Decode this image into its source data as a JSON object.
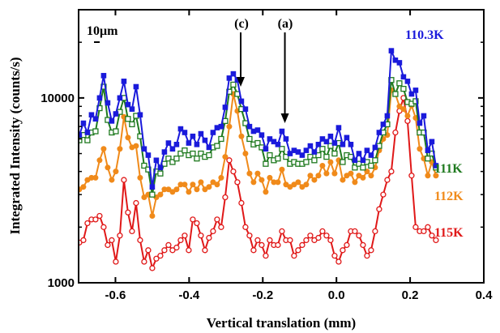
{
  "chart_data": {
    "type": "line",
    "xlabel": "Vertical translation (mm)",
    "ylabel": "Integrated Intensity (counts/s)",
    "xlim": [
      -0.7,
      0.4
    ],
    "ylim": [
      1000,
      30000
    ],
    "yscale": "log",
    "x_ticks": [
      -0.6,
      -0.4,
      -0.2,
      0.0,
      0.2,
      0.4
    ],
    "x_tick_labels": [
      "-0.6",
      "-0.4",
      "-0.2",
      "0.0",
      "0.2",
      "0.4"
    ],
    "y_ticks": [
      1000,
      10000
    ],
    "y_tick_labels": [
      "1000",
      "10000"
    ],
    "grid": false,
    "scale_bar_label": "10μm",
    "annotations": [
      {
        "text": "(c)",
        "x": -0.26,
        "arrow_tip_y": 11500
      },
      {
        "text": "(a)",
        "x": -0.14,
        "arrow_tip_y": 7300
      }
    ],
    "series": [
      {
        "name": "110.3K",
        "color": "#1a1adb",
        "marker": "filled-square",
        "x": [
          -0.71,
          -0.698,
          -0.687,
          -0.676,
          -0.665,
          -0.654,
          -0.643,
          -0.632,
          -0.621,
          -0.61,
          -0.599,
          -0.588,
          -0.577,
          -0.566,
          -0.555,
          -0.544,
          -0.533,
          -0.522,
          -0.511,
          -0.5,
          -0.489,
          -0.478,
          -0.467,
          -0.456,
          -0.445,
          -0.434,
          -0.423,
          -0.412,
          -0.401,
          -0.39,
          -0.379,
          -0.368,
          -0.357,
          -0.346,
          -0.335,
          -0.324,
          -0.313,
          -0.302,
          -0.291,
          -0.28,
          -0.269,
          -0.258,
          -0.247,
          -0.236,
          -0.225,
          -0.214,
          -0.203,
          -0.192,
          -0.181,
          -0.17,
          -0.159,
          -0.148,
          -0.137,
          -0.126,
          -0.115,
          -0.104,
          -0.093,
          -0.082,
          -0.071,
          -0.06,
          -0.049,
          -0.038,
          -0.027,
          -0.016,
          -0.005,
          0.006,
          0.017,
          0.028,
          0.039,
          0.05,
          0.061,
          0.072,
          0.083,
          0.094,
          0.105,
          0.116,
          0.127,
          0.138,
          0.149,
          0.16,
          0.171,
          0.182,
          0.193,
          0.204,
          0.215,
          0.226,
          0.237,
          0.248,
          0.259,
          0.27
        ],
        "y": [
          7000,
          6300,
          7300,
          6500,
          8100,
          7700,
          10000,
          13200,
          9400,
          7500,
          8200,
          10000,
          12300,
          9200,
          8700,
          11500,
          8100,
          5300,
          4900,
          3300,
          4600,
          4200,
          5100,
          5700,
          5300,
          5600,
          6800,
          6500,
          5700,
          6200,
          5600,
          6400,
          5900,
          5400,
          6500,
          6900,
          7000,
          8900,
          12800,
          13500,
          12500,
          9600,
          8700,
          7000,
          6600,
          6700,
          6300,
          5300,
          6000,
          5800,
          5600,
          6600,
          6000,
          5000,
          5200,
          5100,
          4900,
          5200,
          5500,
          5100,
          5600,
          6000,
          5800,
          6200,
          5700,
          6900,
          5600,
          6100,
          5600,
          4600,
          5000,
          4600,
          5200,
          4900,
          5400,
          6500,
          7200,
          8000,
          18000,
          16000,
          15500,
          13000,
          12300,
          10500,
          11000,
          7300,
          8000,
          5200,
          5800,
          4300
        ]
      },
      {
        "name": "111K",
        "color": "#1f7a1f",
        "marker": "open-square",
        "x": [
          -0.71,
          -0.698,
          -0.687,
          -0.676,
          -0.665,
          -0.654,
          -0.643,
          -0.632,
          -0.621,
          -0.61,
          -0.599,
          -0.588,
          -0.577,
          -0.566,
          -0.555,
          -0.544,
          -0.533,
          -0.522,
          -0.511,
          -0.5,
          -0.489,
          -0.478,
          -0.467,
          -0.456,
          -0.445,
          -0.434,
          -0.423,
          -0.412,
          -0.401,
          -0.39,
          -0.379,
          -0.368,
          -0.357,
          -0.346,
          -0.335,
          -0.324,
          -0.313,
          -0.302,
          -0.291,
          -0.28,
          -0.269,
          -0.258,
          -0.247,
          -0.236,
          -0.225,
          -0.214,
          -0.203,
          -0.192,
          -0.181,
          -0.17,
          -0.159,
          -0.148,
          -0.137,
          -0.126,
          -0.115,
          -0.104,
          -0.093,
          -0.082,
          -0.071,
          -0.06,
          -0.049,
          -0.038,
          -0.027,
          -0.016,
          -0.005,
          0.006,
          0.017,
          0.028,
          0.039,
          0.05,
          0.061,
          0.072,
          0.083,
          0.094,
          0.105,
          0.116,
          0.127,
          0.138,
          0.149,
          0.16,
          0.171,
          0.182,
          0.193,
          0.204,
          0.215,
          0.226,
          0.237,
          0.248,
          0.259,
          0.27
        ],
        "y": [
          6200,
          5900,
          6300,
          5900,
          6500,
          6600,
          8800,
          11500,
          7600,
          6500,
          6600,
          8400,
          10000,
          7700,
          7200,
          8000,
          6200,
          4300,
          4100,
          3000,
          4000,
          3900,
          4400,
          4700,
          4500,
          4700,
          5000,
          5200,
          4900,
          5000,
          4700,
          5000,
          4800,
          4900,
          5400,
          5500,
          6000,
          7500,
          10800,
          11800,
          10500,
          8700,
          7300,
          6000,
          5600,
          5700,
          5400,
          4400,
          4900,
          4600,
          4700,
          5300,
          4800,
          4400,
          4500,
          4400,
          4400,
          4500,
          4800,
          4600,
          4900,
          5300,
          4800,
          5500,
          5000,
          5700,
          4500,
          4900,
          4800,
          4200,
          4400,
          4200,
          4500,
          4300,
          4600,
          5500,
          6500,
          7200,
          12500,
          10500,
          12000,
          11200,
          9500,
          9300,
          9600,
          6500,
          6500,
          4700,
          5000,
          4200
        ]
      },
      {
        "name": "112K",
        "color": "#f08a1a",
        "marker": "filled-circle",
        "x": [
          -0.71,
          -0.698,
          -0.687,
          -0.676,
          -0.665,
          -0.654,
          -0.643,
          -0.632,
          -0.621,
          -0.61,
          -0.599,
          -0.588,
          -0.577,
          -0.566,
          -0.555,
          -0.544,
          -0.533,
          -0.522,
          -0.511,
          -0.5,
          -0.489,
          -0.478,
          -0.467,
          -0.456,
          -0.445,
          -0.434,
          -0.423,
          -0.412,
          -0.401,
          -0.39,
          -0.379,
          -0.368,
          -0.357,
          -0.346,
          -0.335,
          -0.324,
          -0.313,
          -0.302,
          -0.291,
          -0.28,
          -0.269,
          -0.258,
          -0.247,
          -0.236,
          -0.225,
          -0.214,
          -0.203,
          -0.192,
          -0.181,
          -0.17,
          -0.159,
          -0.148,
          -0.137,
          -0.126,
          -0.115,
          -0.104,
          -0.093,
          -0.082,
          -0.071,
          -0.06,
          -0.049,
          -0.038,
          -0.027,
          -0.016,
          -0.005,
          0.006,
          0.017,
          0.028,
          0.039,
          0.05,
          0.061,
          0.072,
          0.083,
          0.094,
          0.105,
          0.116,
          0.127,
          0.138,
          0.149,
          0.16,
          0.171,
          0.182,
          0.193,
          0.204,
          0.215,
          0.226,
          0.237,
          0.248,
          0.259,
          0.27
        ],
        "y": [
          3400,
          3200,
          3300,
          3600,
          3700,
          3700,
          4600,
          5300,
          4200,
          3600,
          4000,
          5300,
          7900,
          6100,
          5400,
          5500,
          3700,
          2900,
          3000,
          2300,
          2900,
          3000,
          3200,
          3200,
          3100,
          3200,
          3400,
          3400,
          3100,
          3400,
          3200,
          3500,
          3200,
          3300,
          3500,
          3400,
          3700,
          4800,
          7000,
          10500,
          8500,
          6200,
          5000,
          3900,
          3500,
          3900,
          3600,
          3100,
          3700,
          3500,
          3500,
          4100,
          3400,
          3300,
          3400,
          3500,
          3300,
          3400,
          3800,
          3600,
          3800,
          4300,
          3900,
          4500,
          3900,
          4600,
          3600,
          3800,
          3900,
          3500,
          3800,
          3700,
          4000,
          3800,
          4200,
          5200,
          6000,
          6300,
          11000,
          10500,
          9000,
          8700,
          8000,
          9100,
          7800,
          5300,
          4700,
          3800,
          4500,
          3800
        ]
      },
      {
        "name": "115K",
        "color": "#e01818",
        "marker": "open-circle",
        "x": [
          -0.71,
          -0.698,
          -0.687,
          -0.676,
          -0.665,
          -0.654,
          -0.643,
          -0.632,
          -0.621,
          -0.61,
          -0.599,
          -0.588,
          -0.577,
          -0.566,
          -0.555,
          -0.544,
          -0.533,
          -0.522,
          -0.511,
          -0.5,
          -0.489,
          -0.478,
          -0.467,
          -0.456,
          -0.445,
          -0.434,
          -0.423,
          -0.412,
          -0.401,
          -0.39,
          -0.379,
          -0.368,
          -0.357,
          -0.346,
          -0.335,
          -0.324,
          -0.313,
          -0.302,
          -0.291,
          -0.28,
          -0.269,
          -0.258,
          -0.247,
          -0.236,
          -0.225,
          -0.214,
          -0.203,
          -0.192,
          -0.181,
          -0.17,
          -0.159,
          -0.148,
          -0.137,
          -0.126,
          -0.115,
          -0.104,
          -0.093,
          -0.082,
          -0.071,
          -0.06,
          -0.049,
          -0.038,
          -0.027,
          -0.016,
          -0.005,
          0.006,
          0.017,
          0.028,
          0.039,
          0.05,
          0.061,
          0.072,
          0.083,
          0.094,
          0.105,
          0.116,
          0.127,
          0.138,
          0.149,
          0.16,
          0.171,
          0.182,
          0.193,
          0.204,
          0.215,
          0.226,
          0.237,
          0.248,
          0.259,
          0.27
        ],
        "y": [
          1600,
          1650,
          1700,
          2100,
          2200,
          2200,
          2300,
          2000,
          1600,
          1700,
          1300,
          1800,
          3600,
          2400,
          1900,
          2700,
          1700,
          1300,
          1500,
          1200,
          1350,
          1400,
          1500,
          1600,
          1500,
          1550,
          1700,
          1800,
          1500,
          2200,
          2100,
          1800,
          1500,
          1750,
          1900,
          2200,
          2000,
          2900,
          4600,
          4000,
          3500,
          2700,
          2000,
          1800,
          1500,
          1700,
          1600,
          1400,
          1700,
          1600,
          1600,
          1900,
          1700,
          1700,
          1400,
          1500,
          1600,
          1700,
          1800,
          1700,
          1750,
          1900,
          1800,
          1700,
          1400,
          1300,
          1500,
          1600,
          1900,
          1900,
          1800,
          1600,
          1400,
          1500,
          1900,
          2500,
          3000,
          3600,
          4000,
          6500,
          8500,
          10000,
          7500,
          3800,
          2000,
          1900,
          1900,
          2000,
          1800,
          1700
        ]
      }
    ]
  }
}
